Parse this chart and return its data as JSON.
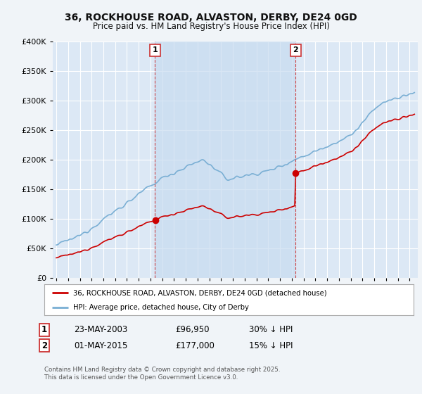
{
  "title": "36, ROCKHOUSE ROAD, ALVASTON, DERBY, DE24 0GD",
  "subtitle": "Price paid vs. HM Land Registry's House Price Index (HPI)",
  "legend_label_red": "36, ROCKHOUSE ROAD, ALVASTON, DERBY, DE24 0GD (detached house)",
  "legend_label_blue": "HPI: Average price, detached house, City of Derby",
  "point1_date": "23-MAY-2003",
  "point1_price": "£96,950",
  "point1_hpi": "30% ↓ HPI",
  "point1_year": 2003.38,
  "point1_value": 96950,
  "point2_date": "01-MAY-2015",
  "point2_price": "£177,000",
  "point2_hpi": "15% ↓ HPI",
  "point2_year": 2015.33,
  "point2_value": 177000,
  "footer": "Contains HM Land Registry data © Crown copyright and database right 2025.\nThis data is licensed under the Open Government Licence v3.0.",
  "background_color": "#f0f4f8",
  "plot_bg_color": "#dce8f5",
  "shade_color": "#c8dcf0",
  "grid_color": "#ffffff",
  "red_color": "#cc0000",
  "blue_color": "#7aafd4",
  "vline_color": "#cc3333"
}
